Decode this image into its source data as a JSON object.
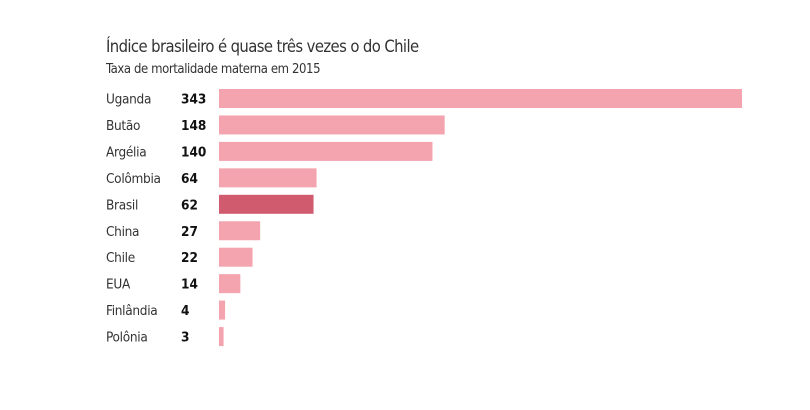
{
  "chart_data": {
    "type": "bar",
    "orientation": "horizontal",
    "title": "Índice brasileiro é quase três vezes o do Chile",
    "subtitle": "Taxa de mortalidade materna em 2015",
    "categories": [
      "Uganda",
      "Butão",
      "Argélia",
      "Colômbia",
      "Brasil",
      "China",
      "Chile",
      "EUA",
      "Finlândia",
      "Polônia"
    ],
    "values": [
      343,
      148,
      140,
      64,
      62,
      27,
      22,
      14,
      4,
      3
    ],
    "highlight": "Brasil",
    "xlim": [
      0,
      343
    ],
    "grid": false,
    "colors": {
      "default": "#f4a4ae",
      "highlight": "#d05b6e"
    }
  }
}
